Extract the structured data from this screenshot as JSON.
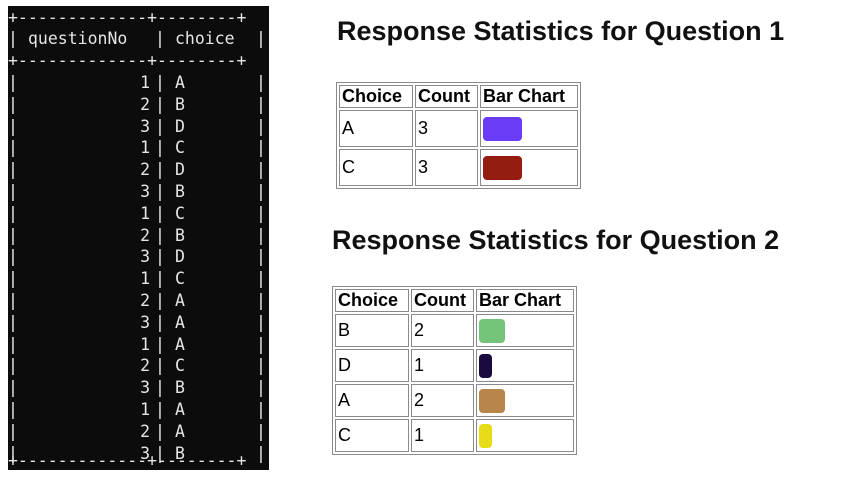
{
  "terminal": {
    "border_rule": "+-------------+--------+",
    "headers": [
      "questionNo",
      "choice"
    ],
    "rows": [
      {
        "q": "1",
        "c": "A"
      },
      {
        "q": "2",
        "c": "B"
      },
      {
        "q": "3",
        "c": "D"
      },
      {
        "q": "1",
        "c": "C"
      },
      {
        "q": "2",
        "c": "D"
      },
      {
        "q": "3",
        "c": "B"
      },
      {
        "q": "1",
        "c": "C"
      },
      {
        "q": "2",
        "c": "B"
      },
      {
        "q": "3",
        "c": "D"
      },
      {
        "q": "1",
        "c": "C"
      },
      {
        "q": "2",
        "c": "A"
      },
      {
        "q": "3",
        "c": "A"
      },
      {
        "q": "1",
        "c": "A"
      },
      {
        "q": "2",
        "c": "C"
      },
      {
        "q": "3",
        "c": "B"
      },
      {
        "q": "1",
        "c": "A"
      },
      {
        "q": "2",
        "c": "A"
      },
      {
        "q": "3",
        "c": "B"
      }
    ]
  },
  "sections": [
    {
      "title": "Response Statistics for Question 1",
      "headers": [
        "Choice",
        "Count",
        "Bar Chart"
      ],
      "rows": [
        {
          "choice": "A",
          "count": "3",
          "bar_color": "#6a3cf5",
          "count_value": 3
        },
        {
          "choice": "C",
          "count": "3",
          "bar_color": "#921d10",
          "count_value": 3
        }
      ]
    },
    {
      "title": "Response Statistics for Question 2",
      "headers": [
        "Choice",
        "Count",
        "Bar Chart"
      ],
      "rows": [
        {
          "choice": "B",
          "count": "2",
          "bar_color": "#74c47a",
          "count_value": 2
        },
        {
          "choice": "D",
          "count": "1",
          "bar_color": "#1a0a40",
          "count_value": 1
        },
        {
          "choice": "A",
          "count": "2",
          "bar_color": "#b8864a",
          "count_value": 2
        },
        {
          "choice": "C",
          "count": "1",
          "bar_color": "#e8dc18",
          "count_value": 1
        }
      ]
    }
  ]
}
